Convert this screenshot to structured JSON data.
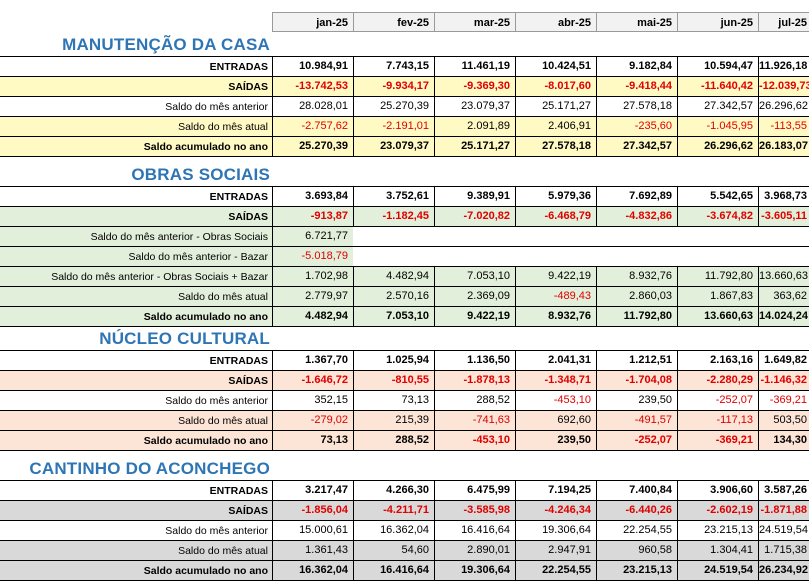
{
  "months": [
    "jan-25",
    "fev-25",
    "mar-25",
    "abr-25",
    "mai-25",
    "jun-25",
    "jul-25"
  ],
  "sections": [
    {
      "title": "MANUTENÇÃO DA CASA",
      "fill": "#fff9c4",
      "rows": [
        {
          "label": "ENTRADAS",
          "bold": true,
          "fill": false,
          "values": [
            "10.984,91",
            "7.743,15",
            "11.461,19",
            "10.424,51",
            "9.182,84",
            "10.594,47",
            "11.926,18"
          ]
        },
        {
          "label": "SAÍDAS",
          "bold": true,
          "fill": true,
          "values": [
            "-13.742,53",
            "-9.934,17",
            "-9.369,30",
            "-8.017,60",
            "-9.418,44",
            "-11.640,42",
            "-12.039,73"
          ]
        },
        {
          "label": "Saldo do mês anterior",
          "bold": false,
          "fill": false,
          "values": [
            "28.028,01",
            "25.270,39",
            "23.079,37",
            "25.171,27",
            "27.578,18",
            "27.342,57",
            "26.296,62"
          ]
        },
        {
          "label": "Saldo do mês atual",
          "bold": false,
          "fill": true,
          "values": [
            "-2.757,62",
            "-2.191,01",
            "2.091,89",
            "2.406,91",
            "-235,60",
            "-1.045,95",
            "-113,55"
          ]
        },
        {
          "label": "Saldo acumulado no ano",
          "bold": true,
          "fill": true,
          "values": [
            "25.270,39",
            "23.079,37",
            "25.171,27",
            "27.578,18",
            "27.342,57",
            "26.296,62",
            "26.183,07"
          ]
        }
      ]
    },
    {
      "title": "OBRAS SOCIAIS",
      "fill": "#e2efda",
      "rows": [
        {
          "label": "ENTRADAS",
          "bold": true,
          "fill": false,
          "values": [
            "3.693,84",
            "3.752,61",
            "9.389,91",
            "5.979,36",
            "7.692,89",
            "5.542,65",
            "3.968,73"
          ]
        },
        {
          "label": "SAÍDAS",
          "bold": true,
          "fill": true,
          "values": [
            "-913,87",
            "-1.182,45",
            "-7.020,82",
            "-6.468,79",
            "-4.832,86",
            "-3.674,82",
            "-3.605,11"
          ]
        },
        {
          "label": "Saldo do mês anterior - Obras Sociais",
          "bold": false,
          "fill": true,
          "values": [
            "6.721,77",
            "",
            "",
            "",
            "",
            "",
            ""
          ]
        },
        {
          "label": "Saldo do mês anterior - Bazar",
          "bold": false,
          "fill": true,
          "values": [
            "-5.018,79",
            "",
            "",
            "",
            "",
            "",
            ""
          ]
        },
        {
          "label": "Saldo do mês anterior - Obras Sociais + Bazar",
          "bold": false,
          "fill": true,
          "values": [
            "1.702,98",
            "4.482,94",
            "7.053,10",
            "9.422,19",
            "8.932,76",
            "11.792,80",
            "13.660,63"
          ]
        },
        {
          "label": "Saldo do mês atual",
          "bold": false,
          "fill": true,
          "values": [
            "2.779,97",
            "2.570,16",
            "2.369,09",
            "-489,43",
            "2.860,03",
            "1.867,83",
            "363,62"
          ]
        },
        {
          "label": "Saldo acumulado no ano",
          "bold": true,
          "fill": true,
          "values": [
            "4.482,94",
            "7.053,10",
            "9.422,19",
            "8.932,76",
            "11.792,80",
            "13.660,63",
            "14.024,24"
          ]
        }
      ]
    },
    {
      "title": "NÚCLEO CULTURAL",
      "fill": "#fce4d6",
      "rows": [
        {
          "label": "ENTRADAS",
          "bold": true,
          "fill": false,
          "values": [
            "1.367,70",
            "1.025,94",
            "1.136,50",
            "2.041,31",
            "1.212,51",
            "2.163,16",
            "1.649,82"
          ]
        },
        {
          "label": "SAÍDAS",
          "bold": true,
          "fill": true,
          "values": [
            "-1.646,72",
            "-810,55",
            "-1.878,13",
            "-1.348,71",
            "-1.704,08",
            "-2.280,29",
            "-1.146,32"
          ]
        },
        {
          "label": "Saldo do mês anterior",
          "bold": false,
          "fill": false,
          "values": [
            "352,15",
            "73,13",
            "288,52",
            "-453,10",
            "239,50",
            "-252,07",
            "-369,21"
          ]
        },
        {
          "label": "Saldo do mês atual",
          "bold": false,
          "fill": true,
          "values": [
            "-279,02",
            "215,39",
            "-741,63",
            "692,60",
            "-491,57",
            "-117,13",
            "503,50"
          ]
        },
        {
          "label": "Saldo acumulado no ano",
          "bold": true,
          "fill": true,
          "values": [
            "73,13",
            "288,52",
            "-453,10",
            "239,50",
            "-252,07",
            "-369,21",
            "134,30"
          ]
        }
      ]
    },
    {
      "title": "CANTINHO DO ACONCHEGO",
      "fill": "#d9d9d9",
      "rows": [
        {
          "label": "ENTRADAS",
          "bold": true,
          "fill": false,
          "values": [
            "3.217,47",
            "4.266,30",
            "6.475,99",
            "7.194,25",
            "7.400,84",
            "3.906,60",
            "3.587,26"
          ]
        },
        {
          "label": "SAÍDAS",
          "bold": true,
          "fill": true,
          "values": [
            "-1.856,04",
            "-4.211,71",
            "-3.585,98",
            "-4.246,34",
            "-6.440,26",
            "-2.602,19",
            "-1.871,88"
          ]
        },
        {
          "label": "Saldo do mês anterior",
          "bold": false,
          "fill": false,
          "values": [
            "15.000,61",
            "16.362,04",
            "16.416,64",
            "19.306,64",
            "22.254,55",
            "23.215,13",
            "24.519,54"
          ]
        },
        {
          "label": "Saldo do mês atual",
          "bold": false,
          "fill": true,
          "values": [
            "1.361,43",
            "54,60",
            "2.890,01",
            "2.947,91",
            "960,58",
            "1.304,41",
            "1.715,38"
          ]
        },
        {
          "label": "Saldo acumulado no ano",
          "bold": true,
          "fill": true,
          "values": [
            "16.362,04",
            "16.416,64",
            "19.306,64",
            "22.254,55",
            "23.215,13",
            "24.519,54",
            "26.234,92"
          ]
        }
      ]
    }
  ]
}
